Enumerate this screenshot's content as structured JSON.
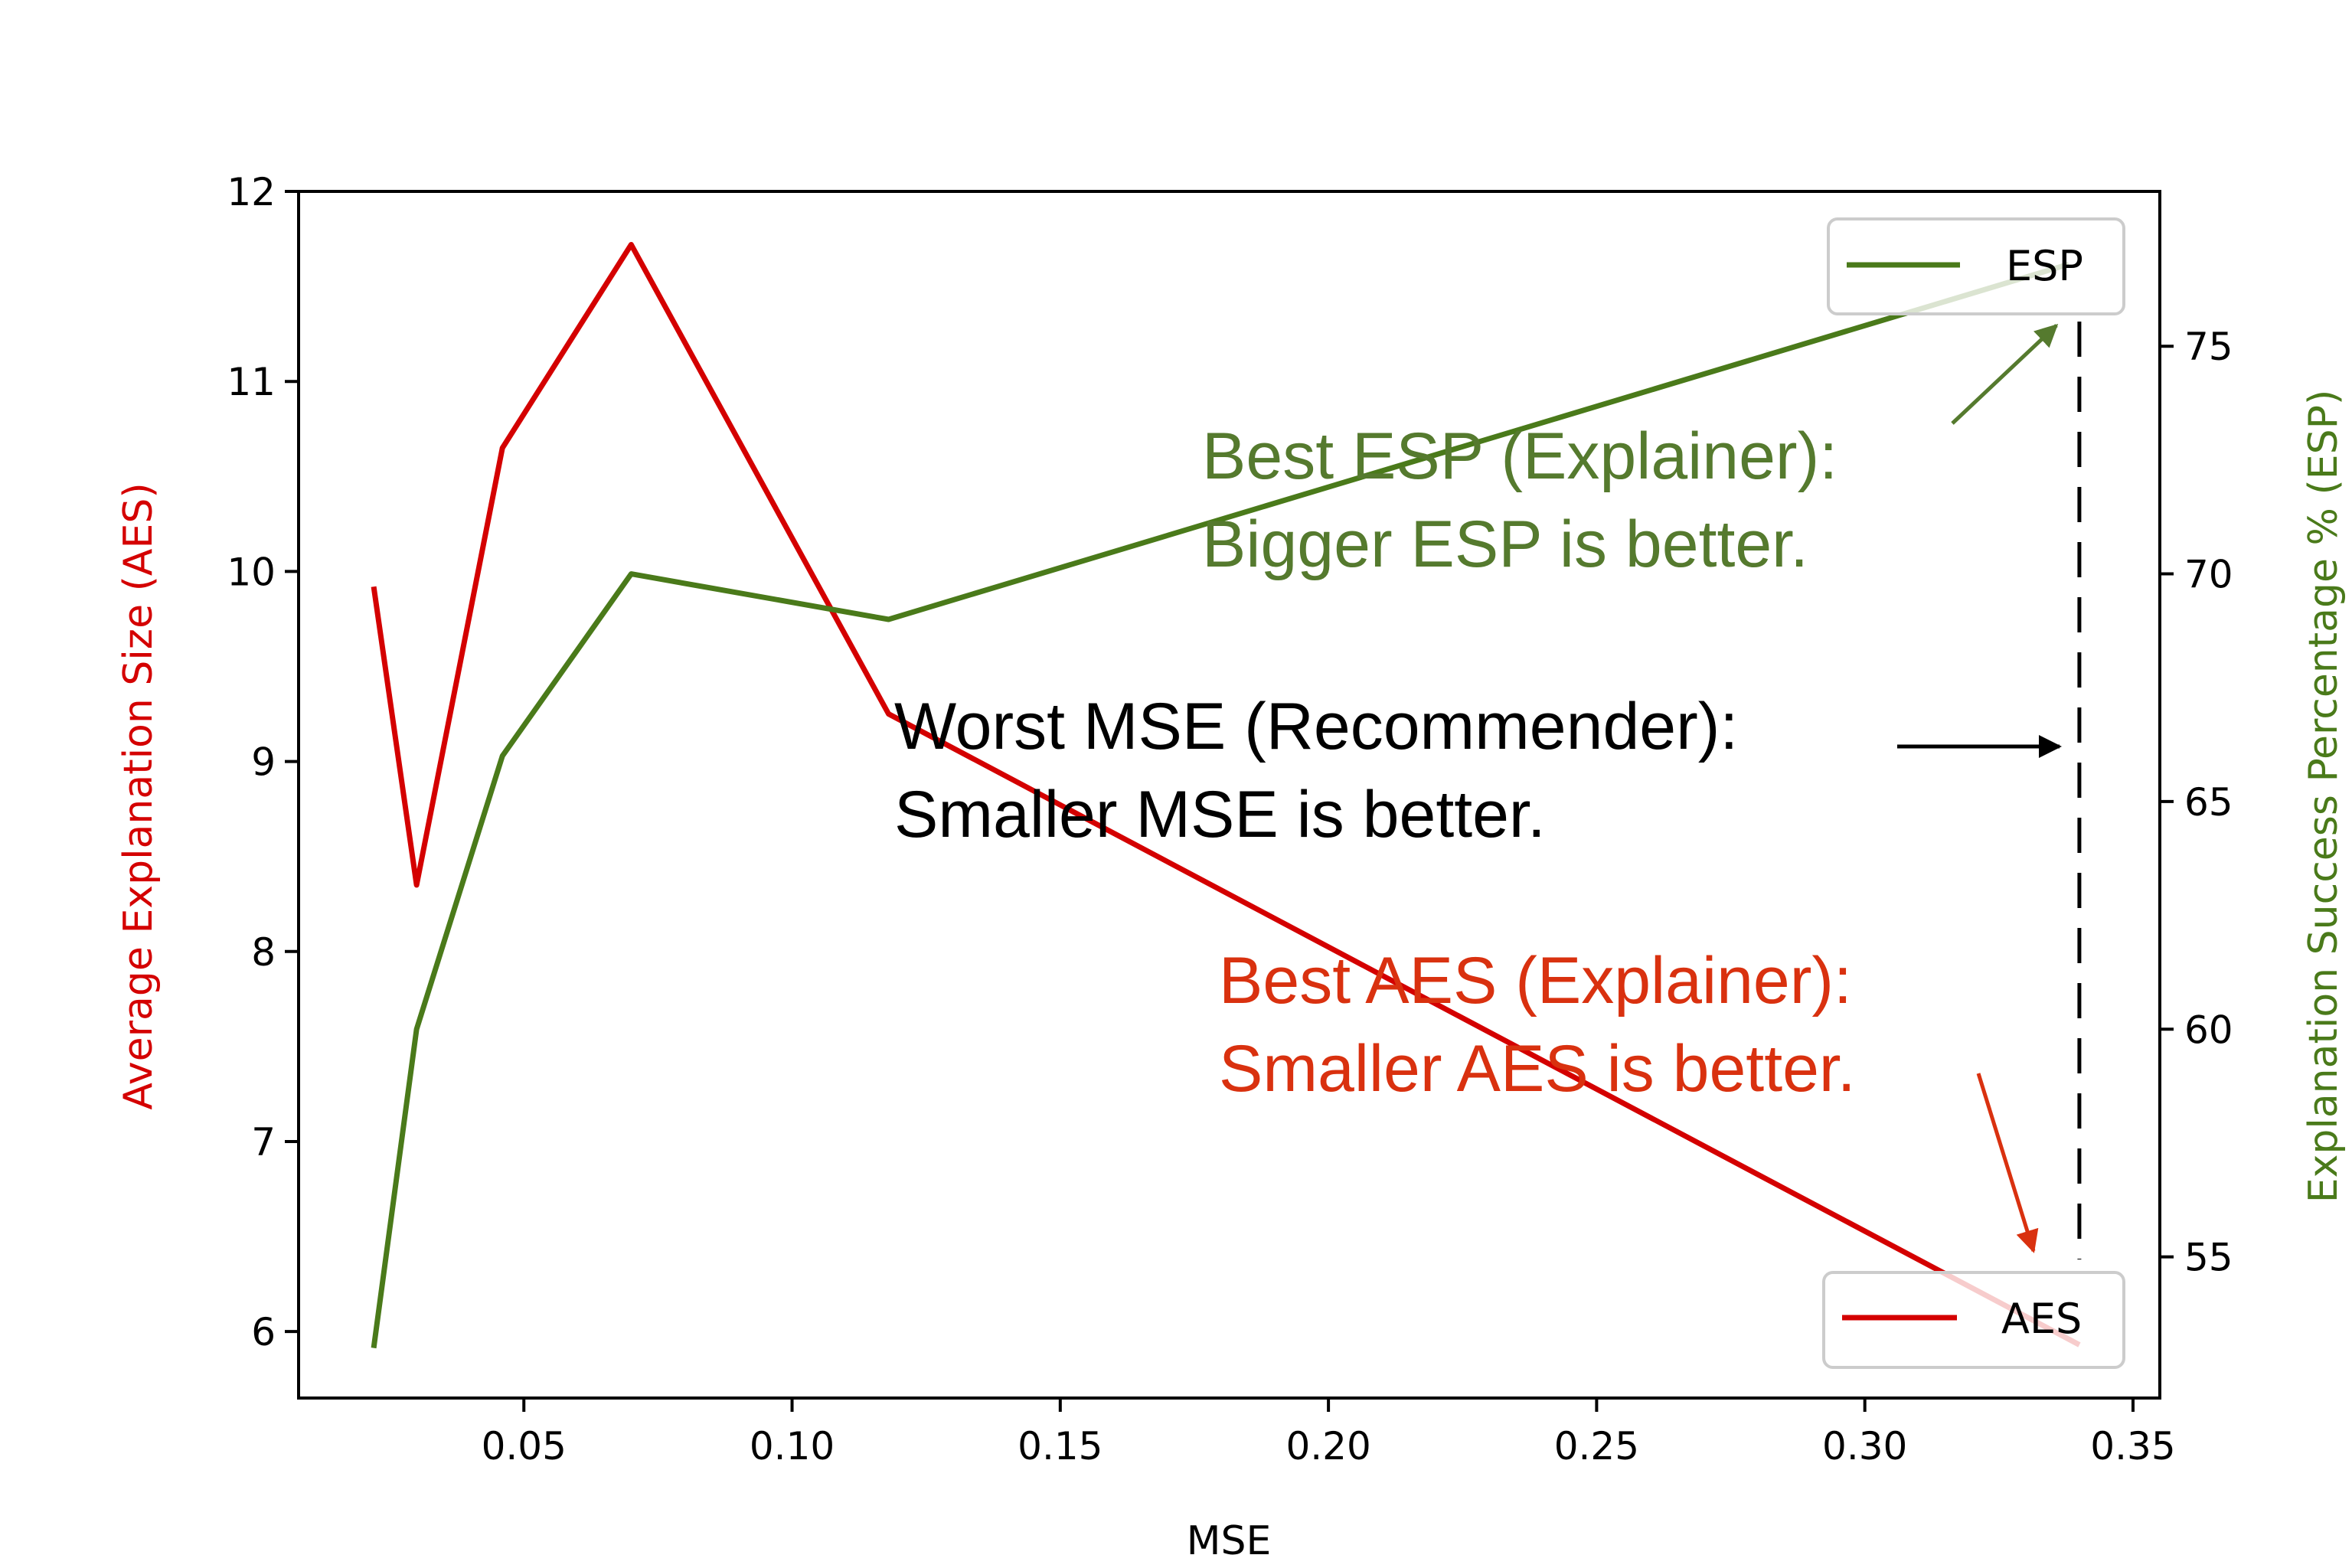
{
  "chart_data": {
    "type": "line",
    "xlabel": "MSE",
    "ylabel_left": "Average Explanation Size (AES)",
    "ylabel_right": "Explanation Success Percentage % (ESP)",
    "xlim": [
      0.008,
      0.355
    ],
    "ylim_left": [
      5.65,
      12.0
    ],
    "ylim_right": [
      51.9,
      78.4
    ],
    "x_ticks": [
      "0.05",
      "0.10",
      "0.15",
      "0.20",
      "0.25",
      "0.30",
      "0.35"
    ],
    "y_left_ticks": [
      "6",
      "7",
      "8",
      "9",
      "10",
      "11",
      "12"
    ],
    "y_right_ticks": [
      "55",
      "60",
      "65",
      "70",
      "75"
    ],
    "colors": {
      "aes": "#d40000",
      "esp": "#4a7a1a",
      "esp_annot": "#557a2e",
      "aes_annot": "#d9310f"
    },
    "series": [
      {
        "name": "AES",
        "axis": "left",
        "x": [
          0.022,
          0.03,
          0.046,
          0.07,
          0.118,
          0.34
        ],
        "values": [
          9.92,
          8.35,
          10.65,
          11.72,
          9.25,
          5.93
        ]
      },
      {
        "name": "ESP",
        "axis": "right",
        "x": [
          0.022,
          0.03,
          0.046,
          0.07,
          0.118,
          0.338
        ],
        "values": [
          53.0,
          60.0,
          66.0,
          70.0,
          69.0,
          76.8
        ]
      }
    ],
    "reference_line": {
      "x": 0.34,
      "style": "dashed"
    },
    "legends": [
      {
        "label": "ESP",
        "placement": "top-right"
      },
      {
        "label": "AES",
        "placement": "bottom-right"
      }
    ],
    "annotations": [
      {
        "id": "esp",
        "lines": [
          "Best ESP (Explainer):",
          "Bigger ESP is better."
        ]
      },
      {
        "id": "mse",
        "lines": [
          "Worst MSE (Recommender):",
          "Smaller MSE is better."
        ]
      },
      {
        "id": "aes",
        "lines": [
          "Best AES (Explainer):",
          "Smaller AES is better."
        ]
      }
    ]
  }
}
